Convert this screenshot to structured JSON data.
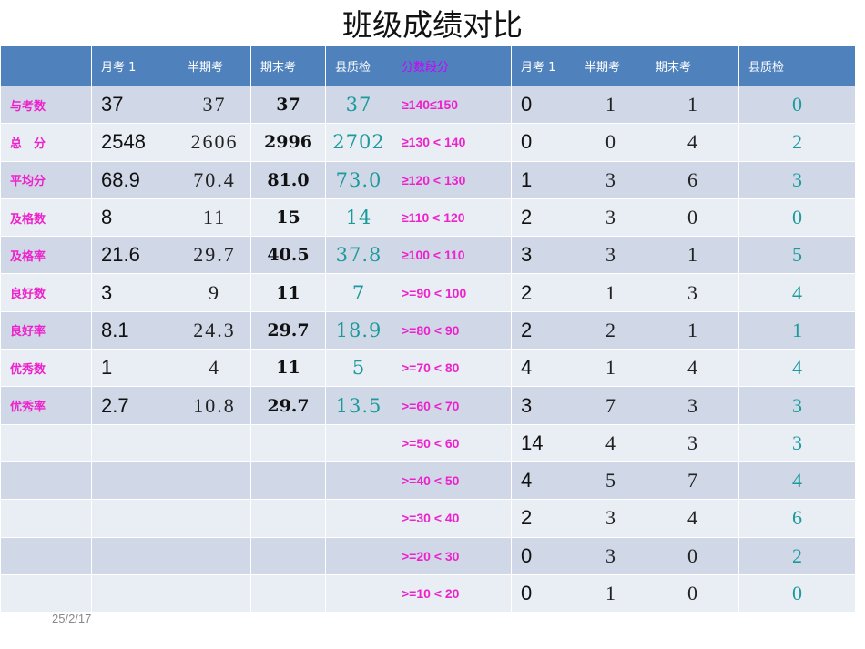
{
  "title": "班级成绩对比",
  "header": {
    "blank": "",
    "left_cols": [
      "月考 1",
      "半期考",
      "期末考",
      "县质检"
    ],
    "segment_col": "分数段分",
    "right_cols": [
      "月考 1",
      "半期考",
      "期末考",
      "县质检"
    ]
  },
  "stats": [
    {
      "label": "与考数",
      "monthly1": "37",
      "midterm": "37",
      "final": "37",
      "county": "37"
    },
    {
      "label": "总　分",
      "monthly1": "2548",
      "midterm": "2606",
      "final": "2996",
      "county": "2702"
    },
    {
      "label": "平均分",
      "monthly1": "68.9",
      "midterm": "70.4",
      "final": "81.0",
      "county": "73.0"
    },
    {
      "label": "及格数",
      "monthly1": "8",
      "midterm": "11",
      "final": "15",
      "county": "14"
    },
    {
      "label": "及格率",
      "monthly1": "21.6",
      "midterm": "29.7",
      "final": "40.5",
      "county": "37.8"
    },
    {
      "label": "良好数",
      "monthly1": "3",
      "midterm": "9",
      "final": "11",
      "county": "7"
    },
    {
      "label": "良好率",
      "monthly1": "8.1",
      "midterm": "24.3",
      "final": "29.7",
      "county": "18.9"
    },
    {
      "label": "优秀数",
      "monthly1": "1",
      "midterm": "4",
      "final": "11",
      "county": "5"
    },
    {
      "label": "优秀率",
      "monthly1": "2.7",
      "midterm": "10.8",
      "final": "29.7",
      "county": "13.5"
    },
    {
      "label": "",
      "monthly1": "",
      "midterm": "",
      "final": "",
      "county": ""
    },
    {
      "label": "",
      "monthly1": "",
      "midterm": "",
      "final": "",
      "county": ""
    },
    {
      "label": "",
      "monthly1": "",
      "midterm": "",
      "final": "",
      "county": ""
    },
    {
      "label": "",
      "monthly1": "",
      "midterm": "",
      "final": "",
      "county": ""
    },
    {
      "label": "",
      "monthly1": "",
      "midterm": "",
      "final": "",
      "county": ""
    }
  ],
  "segments": [
    {
      "range": "≥140≤150",
      "monthly1": "0",
      "midterm": "1",
      "final": "1",
      "county": "0"
    },
    {
      "range": "≥130 < 140",
      "monthly1": "0",
      "midterm": "0",
      "final": "4",
      "county": "2"
    },
    {
      "range": "≥120 < 130",
      "monthly1": "1",
      "midterm": "3",
      "final": "6",
      "county": "3"
    },
    {
      "range": "≥110 < 120",
      "monthly1": "2",
      "midterm": "3",
      "final": "0",
      "county": "0"
    },
    {
      "range": "≥100 < 110",
      "monthly1": "3",
      "midterm": "3",
      "final": "1",
      "county": "5"
    },
    {
      "range": ">=90 < 100",
      "monthly1": "2",
      "midterm": "1",
      "final": "3",
      "county": "4"
    },
    {
      "range": ">=80 < 90",
      "monthly1": "2",
      "midterm": "2",
      "final": "1",
      "county": "1"
    },
    {
      "range": ">=70 < 80",
      "monthly1": "4",
      "midterm": "1",
      "final": "4",
      "county": "4"
    },
    {
      "range": ">=60 < 70",
      "monthly1": "3",
      "midterm": "7",
      "final": "3",
      "county": "3"
    },
    {
      "range": ">=50 < 60",
      "monthly1": "14",
      "midterm": "4",
      "final": "3",
      "county": "3"
    },
    {
      "range": ">=40 < 50",
      "monthly1": "4",
      "midterm": "5",
      "final": "7",
      "county": "4"
    },
    {
      "range": ">=30 < 40",
      "monthly1": "2",
      "midterm": "3",
      "final": "4",
      "county": "6"
    },
    {
      "range": ">=20 < 30",
      "monthly1": "0",
      "midterm": "3",
      "final": "0",
      "county": "2"
    },
    {
      "range": ">=10 < 20",
      "monthly1": "0",
      "midterm": "1",
      "final": "0",
      "county": "0"
    }
  ],
  "footer": {
    "date": "25/2/17"
  },
  "colors": {
    "header_bg": "#4f81bd",
    "row_dark": "#d0d8e8",
    "row_light": "#e9edf4",
    "label_magenta": "#ee22cc",
    "segment_header": "#cc00ff",
    "county_teal": "#1a9a9a"
  }
}
